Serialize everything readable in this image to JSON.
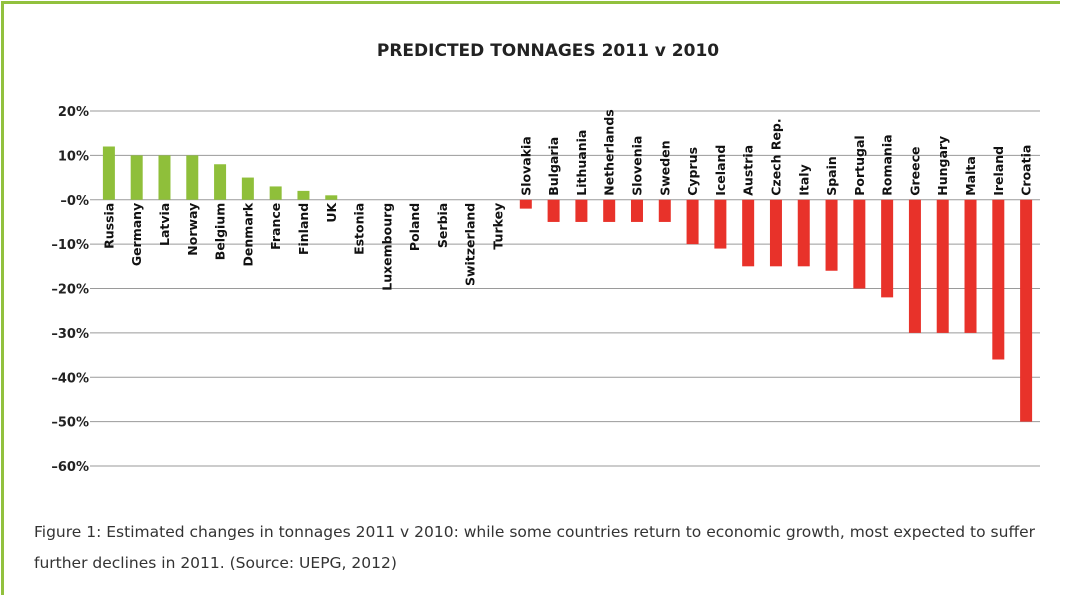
{
  "chart_data": {
    "type": "bar",
    "title": "PREDICTED TONNAGES 2011 v 2010",
    "xlabel": "",
    "ylabel": "",
    "ylim": [
      -60,
      20
    ],
    "y_ticks": [
      20,
      10,
      0,
      -10,
      -20,
      -30,
      -40,
      -50,
      -60
    ],
    "y_tick_labels": [
      "20%",
      "10%",
      "–0%",
      "–10%",
      "–20%",
      "–30%",
      "–40%",
      "–50%",
      "–60%"
    ],
    "grid": true,
    "legend": "none",
    "positive_color": "#8fbf3a",
    "negative_color": "#e8322a",
    "categories": [
      "Russia",
      "Germany",
      "Latvia",
      "Norway",
      "Belgium",
      "Denmark",
      "France",
      "Finland",
      "UK",
      "Estonia",
      "Luxembourg",
      "Poland",
      "Serbia",
      "Switzerland",
      "Turkey",
      "Slovakia",
      "Bulgaria",
      "Lithuania",
      "Netherlands",
      "Slovenia",
      "Sweden",
      "Cyprus",
      "Iceland",
      "Austria",
      "Czech Rep.",
      "Italy",
      "Spain",
      "Portugal",
      "Romania",
      "Greece",
      "Hungary",
      "Malta",
      "Ireland",
      "Croatia"
    ],
    "values": [
      12,
      10,
      10,
      10,
      8,
      5,
      3,
      2,
      1,
      0,
      0,
      0,
      0,
      0,
      0,
      -2,
      -5,
      -5,
      -5,
      -5,
      -5,
      -10,
      -11,
      -15,
      -15,
      -15,
      -16,
      -20,
      -22,
      -30,
      -30,
      -30,
      -36,
      -50
    ]
  },
  "caption": "Figure 1: Estimated changes in tonnages 2011 v 2010: while some countries return to economic growth, most expected to suffer further declines in 2011. (Source: UEPG, 2012)",
  "frame_color": "#92c13e"
}
